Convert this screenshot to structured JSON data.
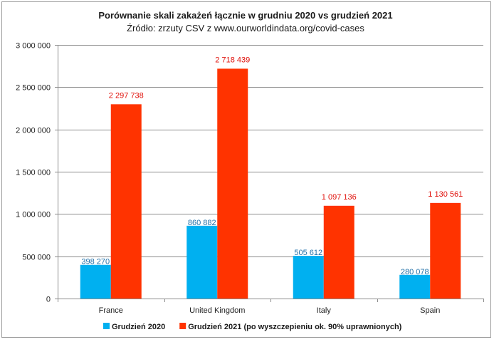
{
  "chart_data": {
    "type": "bar",
    "title": "Porównanie skali zakażeń łącznie w grudniu 2020 vs grudzień 2021",
    "subtitle": "Źródło: zrzuty CSV z www.ourworldindata.org/covid-cases",
    "categories": [
      "France",
      "United Kingdom",
      "Italy",
      "Spain"
    ],
    "series": [
      {
        "name": "Grudzień 2020",
        "color": "#00b0f0",
        "label_color": "#1f6fa8",
        "values": [
          398270,
          860882,
          505612,
          280078
        ],
        "labels": [
          "398 270",
          "860 882",
          "505 612",
          "280 078"
        ]
      },
      {
        "name": "Grudzień 2021 (po wyszczepieniu ok. 90% uprawnionych)",
        "color": "#ff3300",
        "label_color": "#e0100a",
        "values": [
          2297738,
          2718439,
          1097136,
          1130561
        ],
        "labels": [
          "2 297 738",
          "2 718 439",
          "1 097 136",
          "1 130 561"
        ]
      }
    ],
    "ylim": [
      0,
      3000000
    ],
    "yticks": [
      {
        "value": 0,
        "label": "0"
      },
      {
        "value": 500000,
        "label": "500 000"
      },
      {
        "value": 1000000,
        "label": "1 000 000"
      },
      {
        "value": 1500000,
        "label": "1 500 000"
      },
      {
        "value": 2000000,
        "label": "2 000 000"
      },
      {
        "value": 2500000,
        "label": "2 500 000"
      },
      {
        "value": 3000000,
        "label": "3 000 000"
      }
    ],
    "grid": true,
    "legend_position": "bottom"
  }
}
